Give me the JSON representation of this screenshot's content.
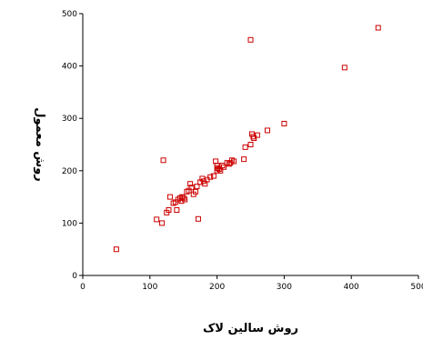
{
  "chart_data": {
    "type": "scatter",
    "title": "",
    "xlabel": "روش سالین لاک",
    "ylabel": "روش معمول",
    "xlim": [
      0,
      500
    ],
    "ylim": [
      0,
      500
    ],
    "xticks": [
      "0",
      "100",
      "200",
      "300",
      "400",
      "500"
    ],
    "yticks": [
      "0",
      "100",
      "200",
      "300",
      "400",
      "500"
    ],
    "grid": false,
    "legend": "none",
    "marker_color": "#cc0000",
    "marker": "hollow-square",
    "points": [
      [
        50,
        50
      ],
      [
        110,
        107
      ],
      [
        118,
        100
      ],
      [
        120,
        220
      ],
      [
        125,
        120
      ],
      [
        128,
        125
      ],
      [
        130,
        150
      ],
      [
        135,
        138
      ],
      [
        138,
        140
      ],
      [
        140,
        125
      ],
      [
        142,
        145
      ],
      [
        145,
        148
      ],
      [
        147,
        142
      ],
      [
        148,
        150
      ],
      [
        150,
        148
      ],
      [
        152,
        145
      ],
      [
        155,
        160
      ],
      [
        158,
        162
      ],
      [
        160,
        175
      ],
      [
        162,
        168
      ],
      [
        165,
        155
      ],
      [
        168,
        160
      ],
      [
        170,
        170
      ],
      [
        172,
        108
      ],
      [
        175,
        178
      ],
      [
        178,
        185
      ],
      [
        180,
        180
      ],
      [
        182,
        175
      ],
      [
        185,
        183
      ],
      [
        190,
        188
      ],
      [
        195,
        190
      ],
      [
        198,
        218
      ],
      [
        200,
        200
      ],
      [
        200,
        210
      ],
      [
        201,
        205
      ],
      [
        203,
        203
      ],
      [
        205,
        200
      ],
      [
        208,
        210
      ],
      [
        210,
        207
      ],
      [
        215,
        215
      ],
      [
        218,
        213
      ],
      [
        220,
        215
      ],
      [
        222,
        220
      ],
      [
        225,
        218
      ],
      [
        240,
        222
      ],
      [
        242,
        245
      ],
      [
        250,
        250
      ],
      [
        252,
        270
      ],
      [
        254,
        265
      ],
      [
        255,
        262
      ],
      [
        260,
        268
      ],
      [
        275,
        277
      ],
      [
        300,
        290
      ],
      [
        250,
        450
      ],
      [
        390,
        397
      ],
      [
        440,
        473
      ]
    ]
  }
}
